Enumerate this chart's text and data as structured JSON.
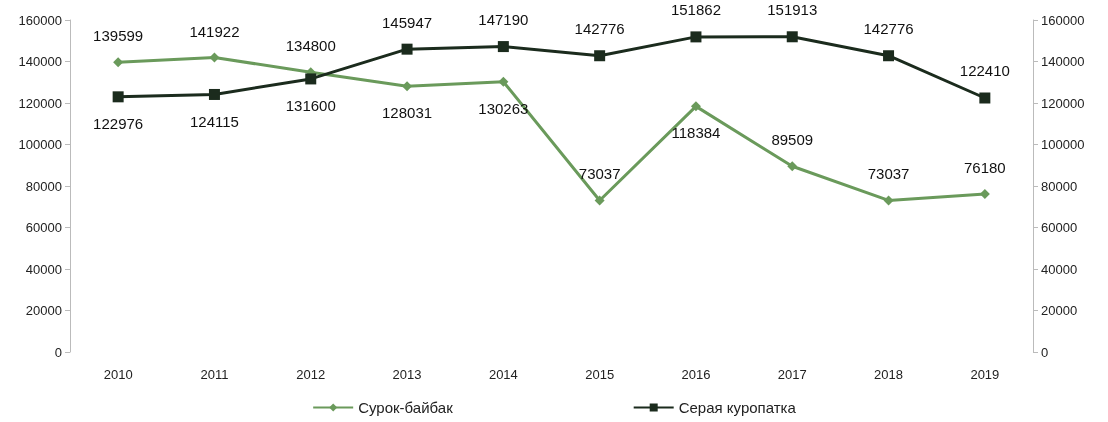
{
  "chart_data": {
    "type": "line",
    "categories": [
      "2010",
      "2011",
      "2012",
      "2013",
      "2014",
      "2015",
      "2016",
      "2017",
      "2018",
      "2019"
    ],
    "series": [
      {
        "name": "Сурок-байбак",
        "color": "#6a9a5b",
        "marker": "diamond",
        "values": [
          139599,
          141922,
          134800,
          128031,
          130263,
          73037,
          118384,
          89509,
          73037,
          76180
        ]
      },
      {
        "name": "Серая куропатка",
        "color": "#1b2b1d",
        "marker": "square",
        "values": [
          122976,
          124115,
          131600,
          145947,
          147190,
          142776,
          151862,
          151913,
          142776,
          122410
        ]
      }
    ],
    "ylim": [
      0,
      160000
    ],
    "yticks": [
      0,
      20000,
      40000,
      60000,
      80000,
      100000,
      120000,
      140000,
      160000
    ],
    "y2lim": [
      0,
      160000
    ],
    "y2ticks": [
      0,
      20000,
      40000,
      60000,
      80000,
      100000,
      120000,
      140000,
      160000
    ],
    "data_labels": true,
    "grid": false,
    "legend": "bottom"
  }
}
